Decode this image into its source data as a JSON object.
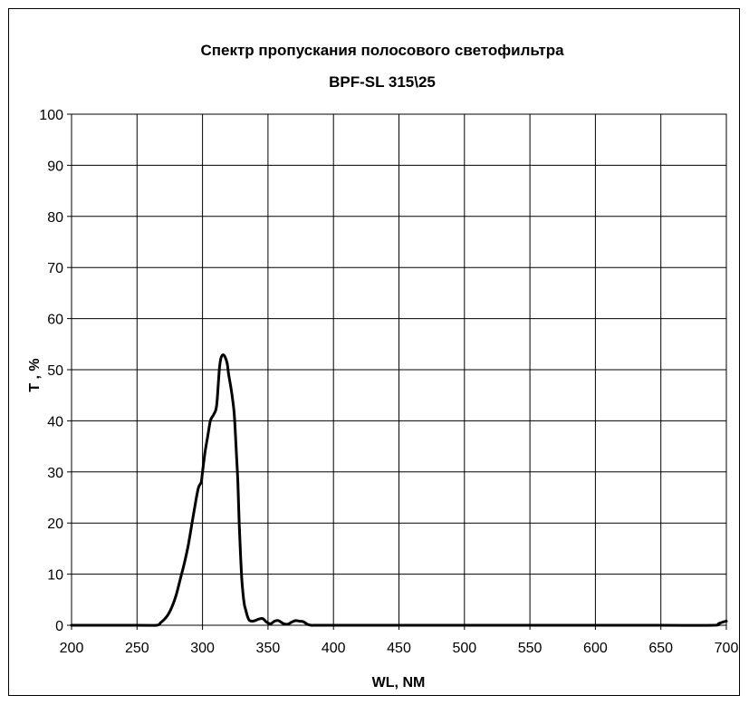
{
  "chart_data": {
    "type": "line",
    "title": "Спектр пропускания полосового светофильтра",
    "subtitle": "BPF-SL 315\\25",
    "xlabel": "WL, NM",
    "ylabel": "T , %",
    "xlim": [
      200,
      700
    ],
    "ylim": [
      0,
      100
    ],
    "x_ticks": [
      200,
      250,
      300,
      350,
      400,
      450,
      500,
      550,
      600,
      650,
      700
    ],
    "y_ticks": [
      0,
      10,
      20,
      30,
      40,
      50,
      60,
      70,
      80,
      90,
      100
    ],
    "grid": true,
    "legend": "none",
    "series": [
      {
        "color": "#000000",
        "x": [
          200,
          250,
          265,
          268,
          271,
          274,
          277,
          280,
          283,
          286,
          289,
          292,
          295,
          297,
          299,
          300,
          302,
          304,
          306,
          308,
          310,
          311,
          312,
          313,
          314,
          315,
          316,
          317,
          318,
          319,
          320,
          322,
          324,
          325,
          326,
          327,
          328,
          329,
          330,
          331,
          332,
          333,
          334,
          335,
          336,
          338,
          340,
          343,
          346,
          349,
          352,
          355,
          358,
          362,
          365,
          368,
          371,
          374,
          377,
          380,
          383,
          386,
          390,
          400,
          450,
          500,
          550,
          600,
          650,
          690,
          694,
          697,
          700
        ],
        "y": [
          0,
          0,
          0,
          0.5,
          1.2,
          2.2,
          3.8,
          6,
          9,
          12,
          15.5,
          20,
          24.5,
          27,
          28,
          30,
          34,
          37,
          40,
          41,
          42,
          43.5,
          47,
          50.5,
          52.2,
          52.8,
          52.9,
          52.6,
          52,
          51,
          49,
          46,
          42,
          38,
          33,
          28,
          20,
          14,
          9,
          6,
          4,
          3,
          2,
          1.3,
          0.9,
          0.8,
          0.9,
          1.2,
          1.3,
          0.6,
          0.3,
          0.8,
          0.9,
          0.3,
          0.2,
          0.6,
          0.9,
          0.8,
          0.7,
          0.2,
          0,
          0,
          0,
          0,
          0,
          0,
          0,
          0,
          0,
          0,
          0.3,
          0.6,
          0.8
        ]
      }
    ]
  }
}
